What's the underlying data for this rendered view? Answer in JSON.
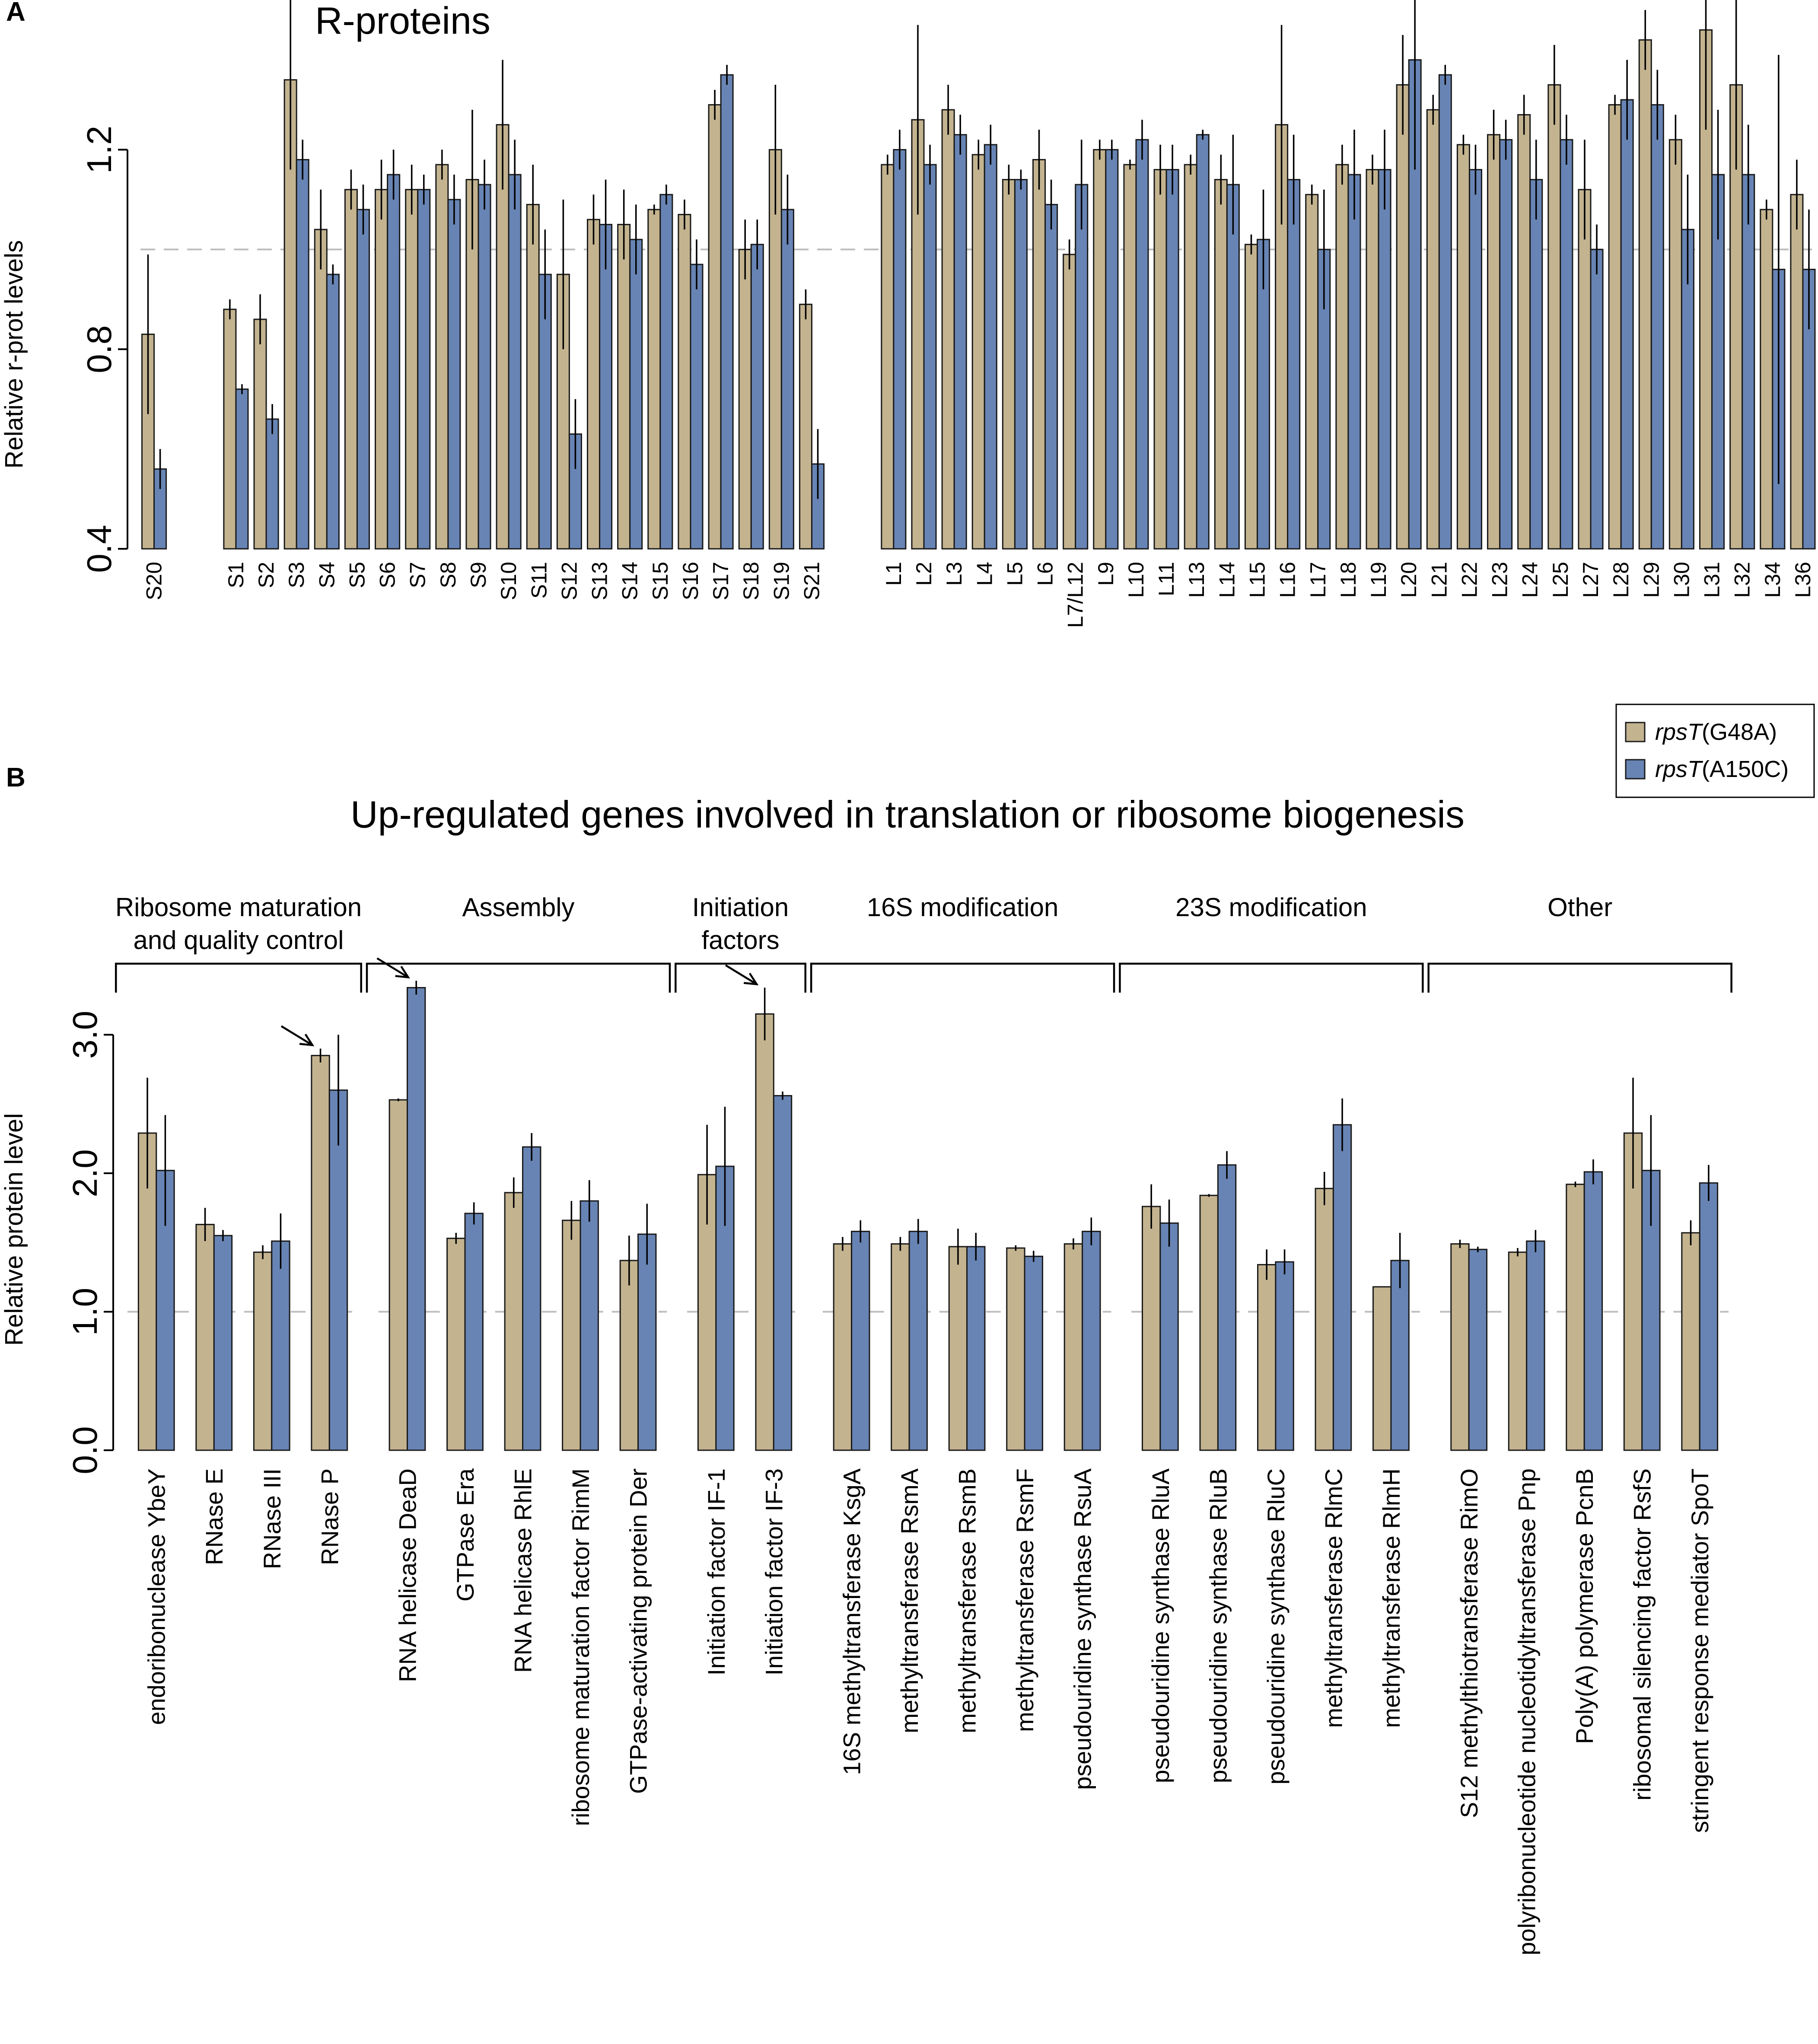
{
  "colors": {
    "g48a": "#c3b38f",
    "a150c": "#6784b4",
    "reference": "#bdbdbd",
    "edge": "#1a1a1a"
  },
  "legend": {
    "items": [
      {
        "gene": "rpsT",
        "allele": "(G48A)",
        "color": "#c3b38f"
      },
      {
        "gene": "rpsT",
        "allele": "(A150C)",
        "color": "#6784b4"
      }
    ]
  },
  "chart_data": [
    {
      "panel": "A",
      "type": "bar",
      "title": "R-proteins",
      "xlabel": "",
      "ylabel": "Relative r-prot levels",
      "ylim": [
        0.4,
        1.5
      ],
      "yticks": [
        "0.4",
        "0.8",
        "1.2"
      ],
      "reference_line": 1.0,
      "grid": false,
      "gaps_after": [
        "S20",
        "S21"
      ],
      "categories": [
        "S20",
        "S1",
        "S2",
        "S3",
        "S4",
        "S5",
        "S6",
        "S7",
        "S8",
        "S9",
        "S10",
        "S11",
        "S12",
        "S13",
        "S14",
        "S15",
        "S16",
        "S17",
        "S18",
        "S19",
        "S21",
        "L1",
        "L2",
        "L3",
        "L4",
        "L5",
        "L6",
        "L7/L12",
        "L9",
        "L10",
        "L11",
        "L13",
        "L14",
        "L15",
        "L16",
        "L17",
        "L18",
        "L19",
        "L20",
        "L21",
        "L22",
        "L23",
        "L24",
        "L25",
        "L27",
        "L28",
        "L29",
        "L30",
        "L31",
        "L32",
        "L34",
        "L36"
      ],
      "series": [
        {
          "name": "rpsT(G48A)",
          "values": [
            0.83,
            0.88,
            0.86,
            1.34,
            1.04,
            1.12,
            1.12,
            1.12,
            1.17,
            1.14,
            1.25,
            1.09,
            0.95,
            1.06,
            1.05,
            1.08,
            1.07,
            1.29,
            1.0,
            1.2,
            0.89,
            1.17,
            1.26,
            1.28,
            1.19,
            1.14,
            1.18,
            0.99,
            1.2,
            1.17,
            1.16,
            1.17,
            1.14,
            1.01,
            1.25,
            1.11,
            1.17,
            1.16,
            1.33,
            1.28,
            1.21,
            1.23,
            1.27,
            1.33,
            1.12,
            1.29,
            1.42,
            1.22,
            1.44,
            1.33,
            1.08,
            1.11
          ],
          "errors": [
            0.16,
            0.02,
            0.05,
            0.18,
            0.08,
            0.04,
            0.06,
            0.05,
            0.03,
            0.14,
            0.13,
            0.08,
            0.15,
            0.05,
            0.07,
            0.01,
            0.03,
            0.03,
            0.06,
            0.13,
            0.03,
            0.02,
            0.19,
            0.05,
            0.03,
            0.03,
            0.06,
            0.03,
            0.02,
            0.01,
            0.05,
            0.02,
            0.05,
            0.02,
            0.2,
            0.02,
            0.04,
            0.03,
            0.1,
            0.03,
            0.02,
            0.05,
            0.04,
            0.08,
            0.1,
            0.02,
            0.06,
            0.05,
            0.2,
            0.17,
            0.02,
            0.07
          ]
        },
        {
          "name": "rpsT(A150C)",
          "values": [
            0.56,
            0.72,
            0.66,
            1.18,
            0.95,
            1.08,
            1.15,
            1.12,
            1.1,
            1.13,
            1.15,
            0.95,
            0.63,
            1.05,
            1.02,
            1.11,
            0.97,
            1.35,
            1.01,
            1.08,
            0.57,
            1.2,
            1.17,
            1.23,
            1.21,
            1.14,
            1.09,
            1.13,
            1.2,
            1.22,
            1.16,
            1.23,
            1.13,
            1.02,
            1.14,
            1.0,
            1.15,
            1.16,
            1.38,
            1.35,
            1.16,
            1.22,
            1.14,
            1.22,
            1.0,
            1.3,
            1.29,
            1.04,
            1.15,
            1.15,
            0.96,
            0.96
          ],
          "errors": [
            0.04,
            0.01,
            0.03,
            0.04,
            0.02,
            0.05,
            0.05,
            0.03,
            0.05,
            0.05,
            0.07,
            0.09,
            0.07,
            0.09,
            0.07,
            0.02,
            0.05,
            0.02,
            0.05,
            0.07,
            0.07,
            0.04,
            0.04,
            0.04,
            0.04,
            0.02,
            0.05,
            0.09,
            0.02,
            0.04,
            0.05,
            0.01,
            0.1,
            0.1,
            0.09,
            0.12,
            0.09,
            0.08,
            0.22,
            0.02,
            0.05,
            0.04,
            0.08,
            0.05,
            0.05,
            0.08,
            0.07,
            0.11,
            0.13,
            0.1,
            0.43,
            0.12
          ]
        }
      ]
    },
    {
      "panel": "B",
      "type": "bar",
      "title": "Up-regulated genes involved in translation or ribosome biogenesis",
      "xlabel": "",
      "ylabel": "Relative protein level",
      "ylim": [
        0,
        3.5
      ],
      "yticks": [
        "0.0",
        "1.0",
        "2.0",
        "3.0"
      ],
      "reference_line": 1.0,
      "grid": false,
      "groups": [
        {
          "label_lines": [
            "Ribosome maturation",
            "and quality control"
          ],
          "categories": [
            "endoribonuclease YbeY",
            "RNase E",
            "RNase III",
            "RNase P"
          ]
        },
        {
          "label_lines": [
            "Assembly"
          ],
          "categories": [
            "RNA helicase DeaD",
            "GTPase Era",
            "RNA helicase RhlE",
            "ribosome maturation factor RimM",
            "GTPase-activating protein Der"
          ]
        },
        {
          "label_lines": [
            "Initiation",
            "factors"
          ],
          "categories": [
            "Initiation factor IF-1",
            "Initiation factor IF-3"
          ]
        },
        {
          "label_lines": [
            "16S modification"
          ],
          "categories": [
            "16S methyltransferase KsgA",
            "methyltransferase RsmA",
            "methyltransferase RsmB",
            "methyltransferase RsmF",
            "pseudouridine synthase RsuA"
          ]
        },
        {
          "label_lines": [
            "23S modification"
          ],
          "categories": [
            "pseudouridine synthase RluA",
            "pseudouridine synthase RluB",
            "pseudouridine synthase RluC",
            "methyltransferase RlmC",
            "methyltransferase RlmH"
          ]
        },
        {
          "label_lines": [
            "Other"
          ],
          "categories": [
            "S12 methylthiotransferase RimO",
            "polyribonucleotide nucleotidyltransferase Pnp",
            "Poly(A) polymerase PcnB",
            "ribosomal silencing factor RsfS",
            "stringent response mediator SpoT"
          ]
        }
      ],
      "categories": [
        "endoribonuclease YbeY",
        "RNase E",
        "RNase III",
        "RNase P",
        "RNA helicase DeaD",
        "GTPase Era",
        "RNA helicase RhlE",
        "ribosome maturation factor RimM",
        "GTPase-activating protein Der",
        "Initiation factor IF-1",
        "Initiation factor IF-3",
        "16S methyltransferase KsgA",
        "methyltransferase RsmA",
        "methyltransferase RsmB",
        "methyltransferase RsmF",
        "pseudouridine synthase RsuA",
        "pseudouridine synthase RluA",
        "pseudouridine synthase RluB",
        "pseudouridine synthase RluC",
        "methyltransferase RlmC",
        "methyltransferase RlmH",
        "S12 methylthiotransferase RimO",
        "polyribonucleotide nucleotidyltransferase Pnp",
        "Poly(A) polymerase PcnB",
        "ribosomal silencing factor RsfS",
        "stringent response mediator SpoT"
      ],
      "series": [
        {
          "name": "rpsT(G48A)",
          "values": [
            2.29,
            1.63,
            1.43,
            2.85,
            2.53,
            1.53,
            1.86,
            1.66,
            1.37,
            1.99,
            3.15,
            1.49,
            1.49,
            1.47,
            1.46,
            1.49,
            1.76,
            1.84,
            1.34,
            1.89,
            1.18,
            1.49,
            1.43,
            1.92,
            2.29,
            1.57
          ],
          "errors": [
            0.4,
            0.12,
            0.05,
            0.05,
            0.01,
            0.04,
            0.11,
            0.14,
            0.18,
            0.36,
            0.19,
            0.05,
            0.05,
            0.13,
            0.02,
            0.04,
            0.16,
            0.01,
            0.11,
            0.12,
            0.0,
            0.03,
            0.03,
            0.02,
            0.4,
            0.09
          ]
        },
        {
          "name": "rpsT(A150C)",
          "values": [
            2.02,
            1.55,
            1.51,
            2.6,
            3.34,
            1.71,
            2.19,
            1.8,
            1.56,
            2.05,
            2.56,
            1.58,
            1.58,
            1.47,
            1.4,
            1.58,
            1.64,
            2.06,
            1.36,
            2.35,
            1.37,
            1.45,
            1.51,
            2.01,
            2.02,
            1.93
          ],
          "errors": [
            0.4,
            0.04,
            0.2,
            0.4,
            0.05,
            0.08,
            0.1,
            0.15,
            0.22,
            0.43,
            0.03,
            0.08,
            0.09,
            0.1,
            0.04,
            0.1,
            0.17,
            0.1,
            0.09,
            0.19,
            0.2,
            0.02,
            0.08,
            0.09,
            0.4,
            0.13
          ]
        }
      ],
      "annotations": [
        {
          "type": "arrow",
          "target": "RNase P",
          "series": "rpsT(G48A)"
        },
        {
          "type": "arrow",
          "target": "RNA helicase DeaD",
          "series": "rpsT(A150C)"
        },
        {
          "type": "arrow",
          "target": "Initiation factor IF-3",
          "series": "rpsT(G48A)"
        }
      ]
    }
  ]
}
